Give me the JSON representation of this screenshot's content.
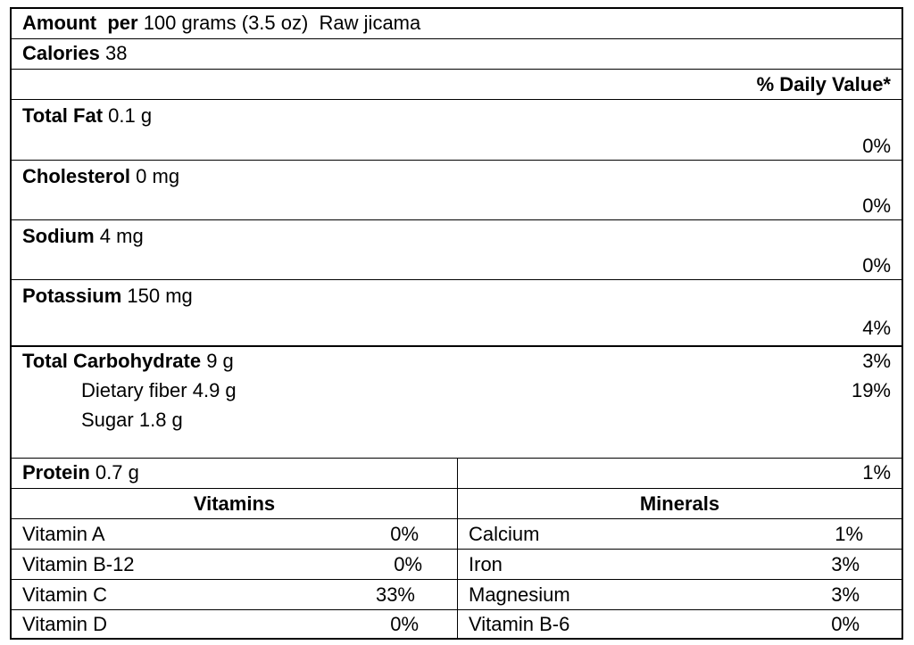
{
  "header": {
    "amount_label": "Amount  per",
    "amount_rest": "100 grams (3.5 oz)  Raw jicama"
  },
  "calories": {
    "label": "Calories",
    "value": "38"
  },
  "daily_value_heading": "% Daily Value*",
  "nutrients": [
    {
      "label": "Total Fat",
      "amount": "0.1 g",
      "dv": "0%"
    },
    {
      "label": "Cholesterol",
      "amount": "0 mg",
      "dv": "0%"
    },
    {
      "label": "Sodium",
      "amount": "4 mg",
      "dv": "0%"
    },
    {
      "label": "Potassium",
      "amount": "150 mg",
      "dv": "4%"
    }
  ],
  "carbohydrate": {
    "label": "Total Carbohydrate",
    "amount": "9 g",
    "dv": "3%",
    "fiber": {
      "label": "Dietary fiber",
      "amount": "4.9 g",
      "dv": "19%"
    },
    "sugar": {
      "label": "Sugar",
      "amount": "1.8 g"
    }
  },
  "protein": {
    "label": "Protein",
    "amount": "0.7 g",
    "dv": "1%"
  },
  "vitamins": {
    "heading": "Vitamins",
    "items": [
      {
        "name": "Vitamin A",
        "dv": "0%"
      },
      {
        "name": "Vitamin B-12",
        "dv": "0%"
      },
      {
        "name": "Vitamin C",
        "dv": "33%"
      },
      {
        "name": "Vitamin D",
        "dv": "0%"
      }
    ]
  },
  "minerals": {
    "heading": "Minerals",
    "items": [
      {
        "name": "Calcium",
        "dv": "1%"
      },
      {
        "name": "Iron",
        "dv": "3%"
      },
      {
        "name": "Magnesium",
        "dv": "3%"
      },
      {
        "name": "Vitamin B-6",
        "dv": "0%"
      }
    ]
  }
}
